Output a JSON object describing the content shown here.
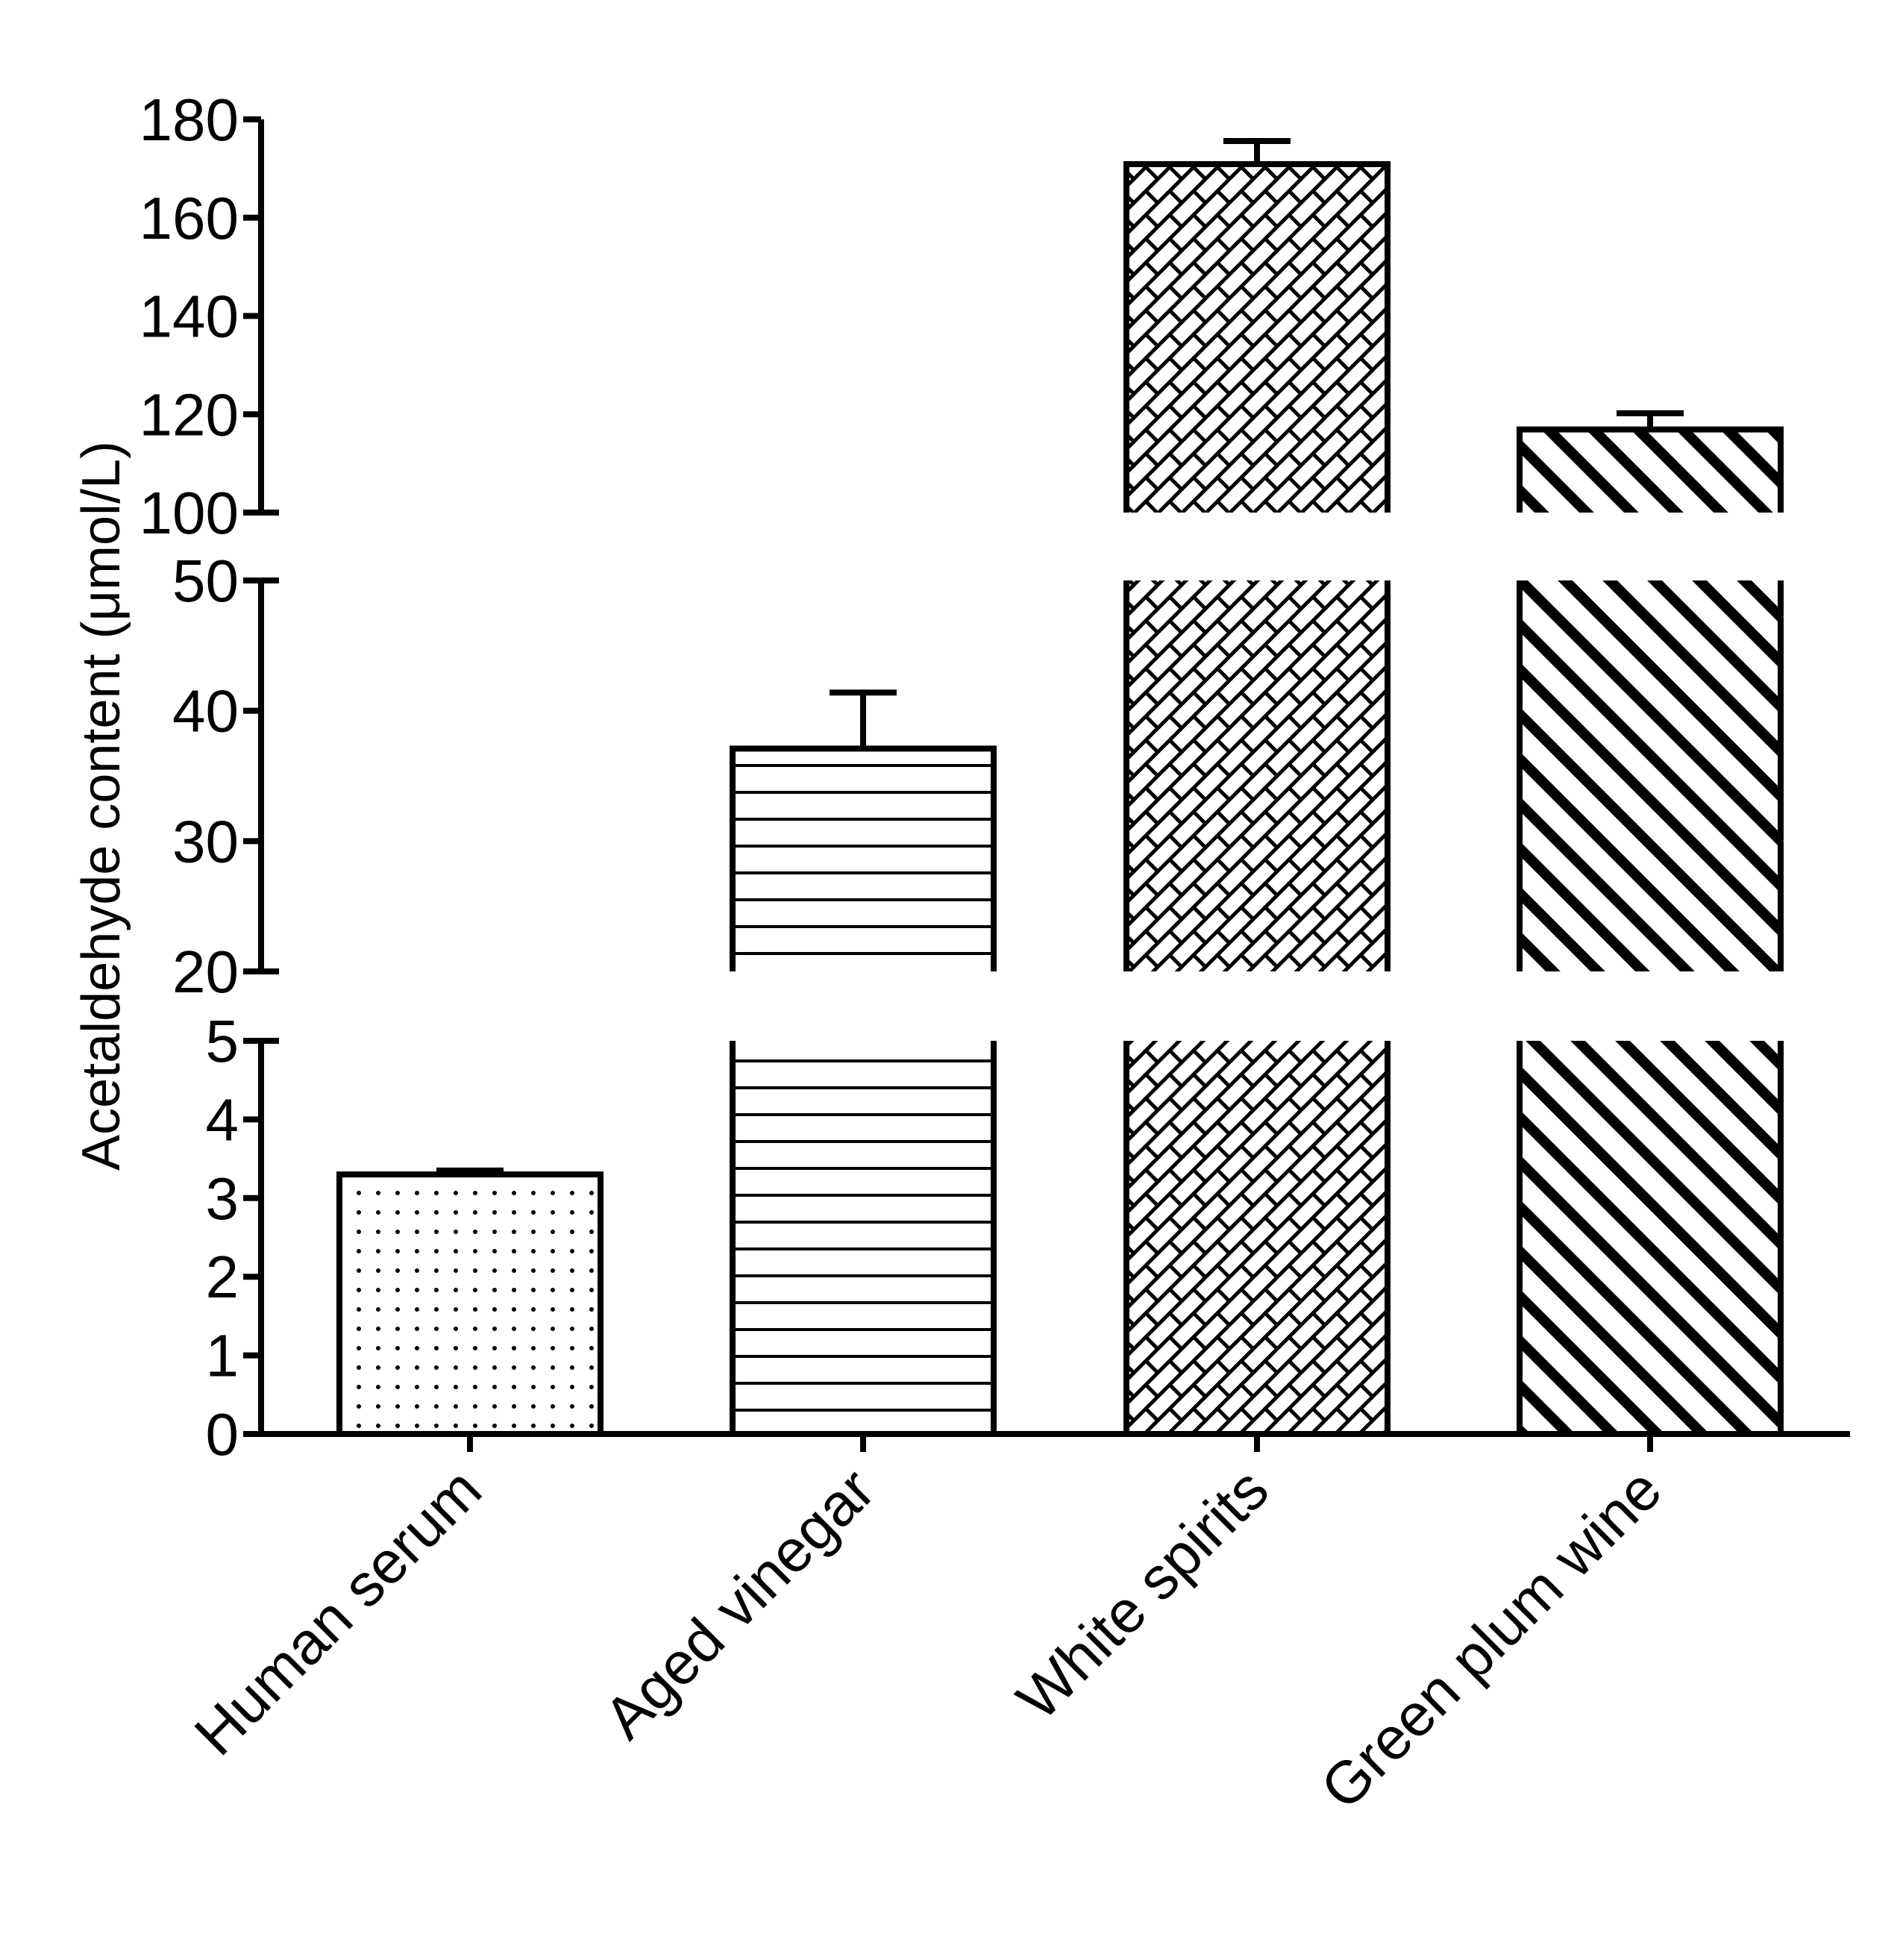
{
  "chart_data": {
    "type": "bar",
    "xlabel": "",
    "ylabel": "Acetaldehyde content (μmol/L)",
    "categories": [
      "Human serum",
      "Aged vinegar",
      "White spirits",
      "Green plum wine"
    ],
    "values": [
      3.3,
      37.1,
      170.9,
      116.9
    ],
    "errors": [
      0.05,
      4.3,
      4.7,
      3.3
    ],
    "patterns": [
      "dots",
      "horizontal-lines",
      "crosshatch",
      "diagonal-lines"
    ],
    "y_axis_segments": [
      {
        "range": [
          0,
          5
        ],
        "ticks": [
          0,
          1,
          2,
          3,
          4,
          5
        ]
      },
      {
        "range": [
          20,
          50
        ],
        "ticks": [
          20,
          30,
          40,
          50
        ]
      },
      {
        "range": [
          100,
          180
        ],
        "ticks": [
          100,
          120,
          140,
          160,
          180
        ]
      }
    ],
    "grid": false,
    "legend": "none",
    "colors": {
      "stroke": "#000000",
      "fill": "#ffffff"
    }
  }
}
